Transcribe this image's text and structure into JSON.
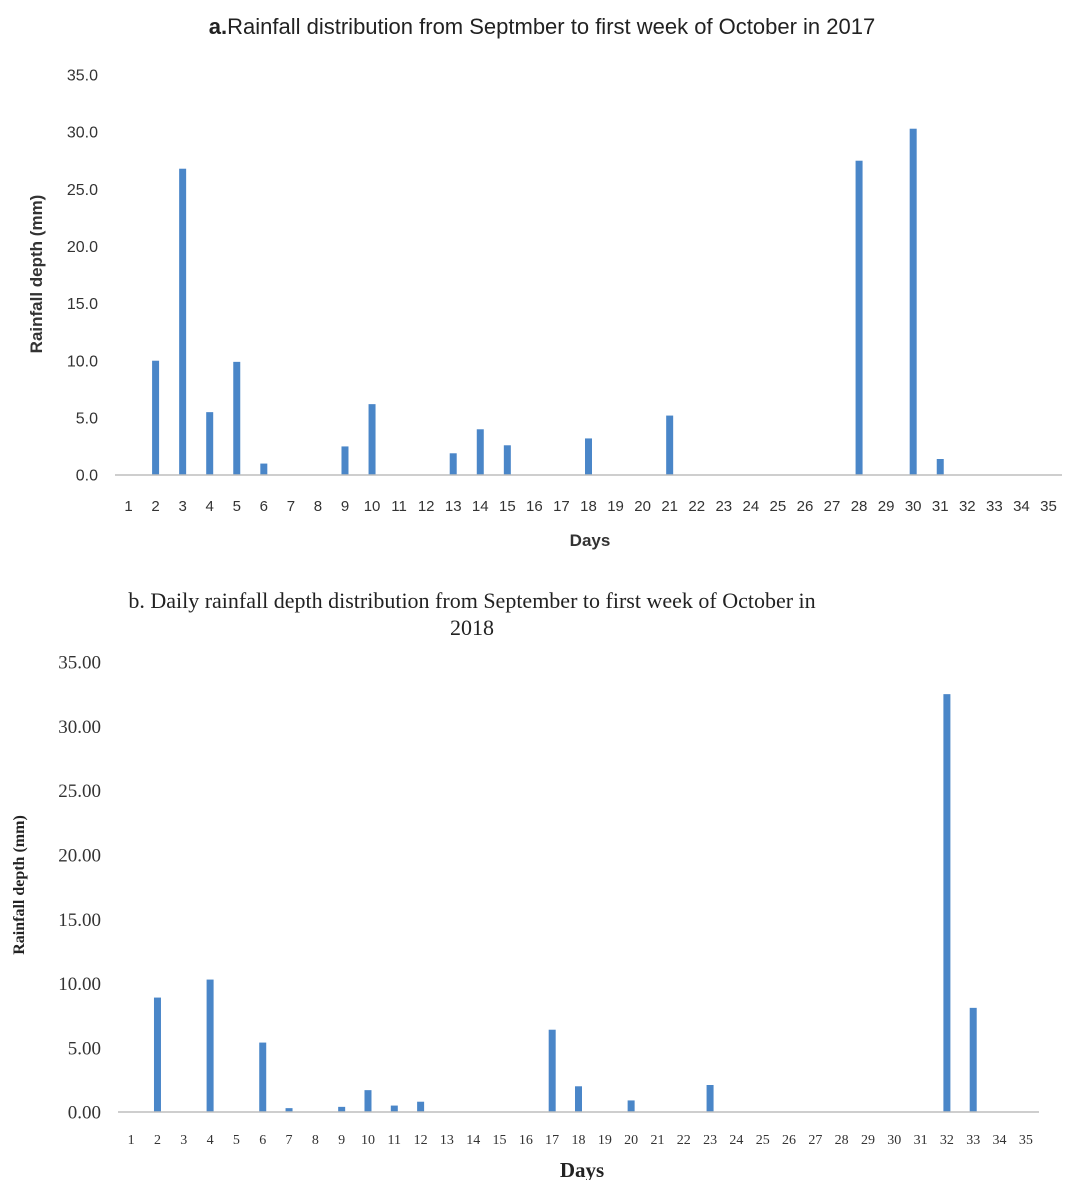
{
  "chart_data": [
    {
      "type": "bar",
      "title_prefix": "a.",
      "title": "Rainfall distribution  from Septmber to first week of October in 2017",
      "xlabel": "Days",
      "ylabel": "Rainfall depth (mm)",
      "ylim": [
        0,
        35
      ],
      "yticks": [
        "0.0",
        "5.0",
        "10.0",
        "15.0",
        "20.0",
        "25.0",
        "30.0",
        "35.0"
      ],
      "grid": false,
      "categories": [
        "1",
        "2",
        "3",
        "4",
        "5",
        "6",
        "7",
        "8",
        "9",
        "10",
        "11",
        "12",
        "13",
        "14",
        "15",
        "16",
        "17",
        "18",
        "19",
        "20",
        "21",
        "22",
        "23",
        "24",
        "25",
        "26",
        "27",
        "28",
        "29",
        "30",
        "31",
        "32",
        "33",
        "34",
        "35"
      ],
      "values": [
        0,
        10.0,
        26.8,
        5.5,
        9.9,
        1.0,
        0,
        0,
        2.5,
        6.2,
        0,
        0,
        1.9,
        4.0,
        2.6,
        0,
        0,
        3.2,
        0,
        0,
        5.2,
        0,
        0,
        0,
        0,
        0,
        0,
        27.5,
        0,
        30.3,
        1.4,
        0,
        0,
        0,
        0
      ],
      "bar_color": "#4a86c8"
    },
    {
      "type": "bar",
      "title_line1": "b. Daily rainfall depth distribution  from September to first week of October in",
      "title_line2": "2018",
      "xlabel": "Days",
      "ylabel": "Rainfall depth (mm)",
      "ylim": [
        0,
        35
      ],
      "yticks": [
        "0.00",
        "5.00",
        "10.00",
        "15.00",
        "20.00",
        "25.00",
        "30.00",
        "35.00"
      ],
      "grid": false,
      "categories": [
        "1",
        "2",
        "3",
        "4",
        "5",
        "6",
        "7",
        "8",
        "9",
        "10",
        "11",
        "12",
        "13",
        "14",
        "15",
        "16",
        "17",
        "18",
        "19",
        "20",
        "21",
        "22",
        "23",
        "24",
        "25",
        "26",
        "27",
        "28",
        "29",
        "30",
        "31",
        "32",
        "33",
        "34",
        "35"
      ],
      "values": [
        0,
        8.9,
        0,
        10.3,
        0,
        5.4,
        0.3,
        0,
        0.4,
        1.7,
        0.5,
        0.8,
        0,
        0,
        0,
        0,
        6.4,
        2.0,
        0,
        0.9,
        0,
        0,
        2.1,
        0,
        0,
        0,
        0,
        0,
        0,
        0,
        0,
        32.5,
        8.1,
        0,
        0
      ],
      "bar_color": "#4a86c8"
    }
  ]
}
